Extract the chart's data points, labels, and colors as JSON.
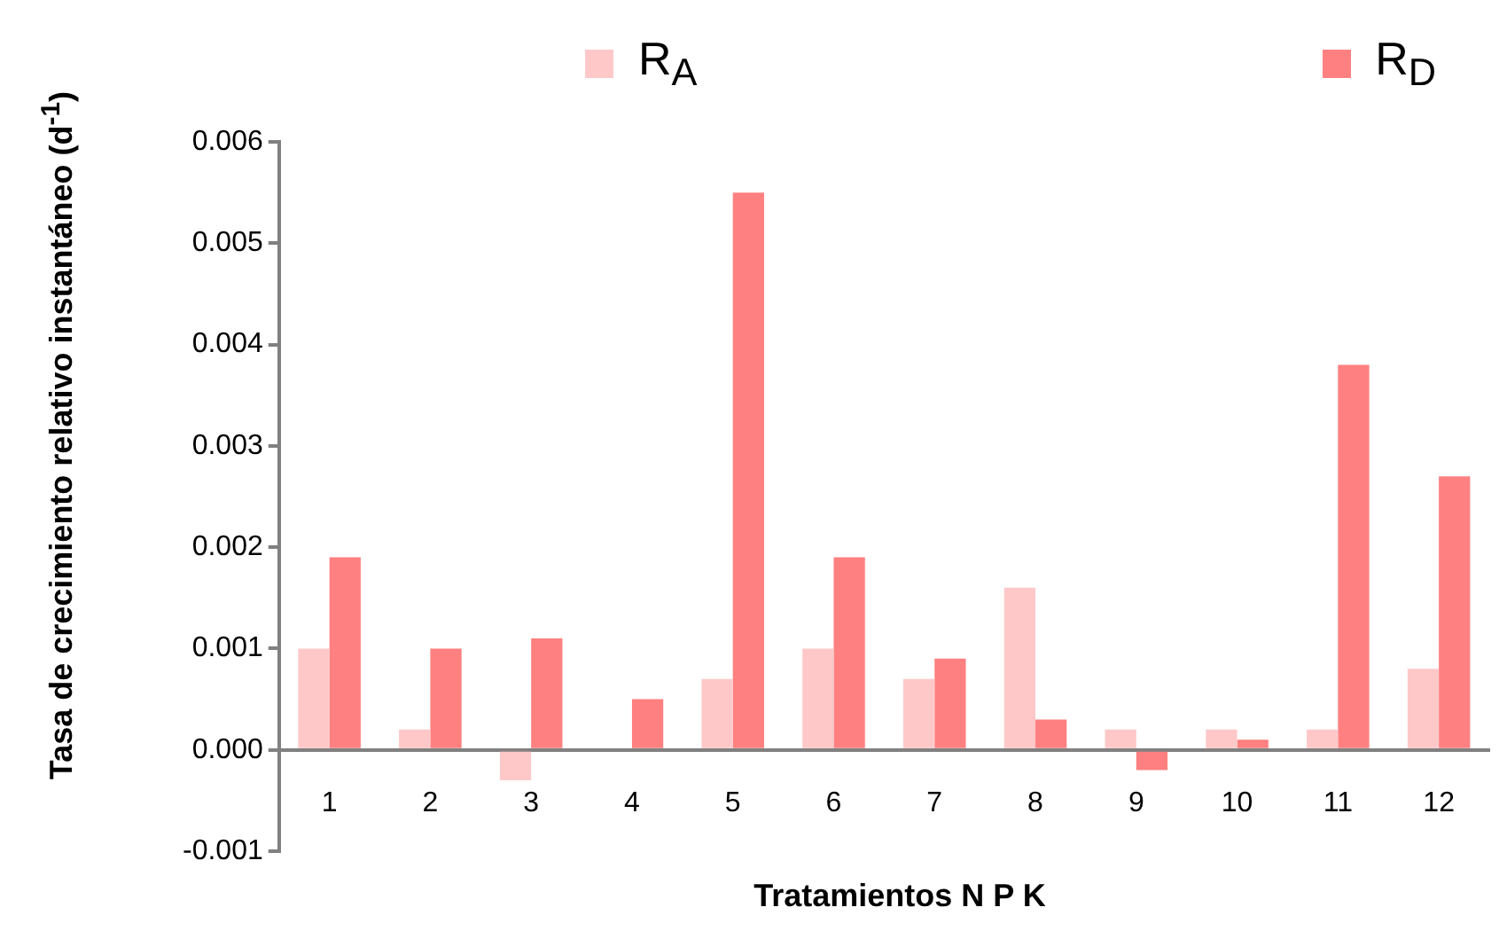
{
  "chart_data": {
    "type": "bar",
    "xlabel": "Tratamientos N P K",
    "ylabel": "Tasa de crecimiento relativo instantáneo (d$^{-1}$)",
    "categories": [
      "1",
      "2",
      "3",
      "4",
      "5",
      "6",
      "7",
      "8",
      "9",
      "10",
      "11",
      "12"
    ],
    "series": [
      {
        "name": "R$_{A}$",
        "color": "#ffc8c8",
        "values": [
          0.001,
          0.0002,
          -0.0003,
          0,
          0.0007,
          0.001,
          0.0007,
          0.0016,
          0.0002,
          0.0002,
          0.0002,
          0.0008
        ]
      },
      {
        "name": "R$_{D}$",
        "color": "#ff8080",
        "values": [
          0.0019,
          0.001,
          0.0011,
          0.0005,
          0.0055,
          0.0019,
          0.0009,
          0.0003,
          -0.0002,
          0.0001,
          0.0038,
          0.0027
        ]
      }
    ],
    "ylim": [
      -0.001,
      0.006
    ],
    "yticks": [
      -0.001,
      {
        "value": 0,
        "label": "0.000"
      },
      0.001,
      0.002,
      0.003,
      0.004,
      0.005,
      0.006
    ],
    "grid": false,
    "legend": "top"
  }
}
